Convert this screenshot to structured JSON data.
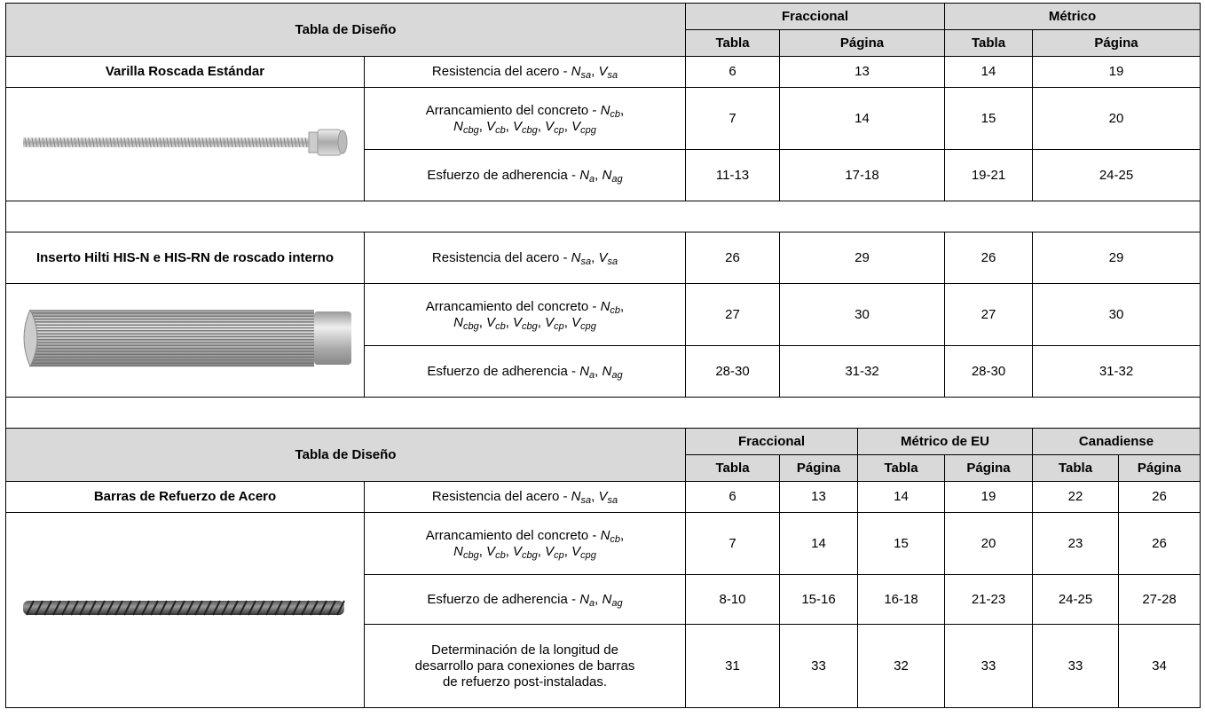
{
  "sections": [
    {
      "header": {
        "title": "Tabla de Diseño",
        "groups": [
          {
            "name": "Fraccional",
            "cols": [
              "Tabla",
              "Página"
            ]
          },
          {
            "name": "Métrico",
            "cols": [
              "Tabla",
              "Página"
            ]
          }
        ]
      },
      "items": [
        {
          "name": "Varilla Roscada Estándar",
          "rows": [
            {
              "label": [
                [
                  "Resistencia del acero - ",
                  {
                    "v": "N",
                    "sub": "sa"
                  },
                  ", ",
                  {
                    "v": "V",
                    "sub": "sa"
                  }
                ]
              ],
              "values": [
                "6",
                "13",
                "14",
                "19"
              ]
            },
            {
              "label": [
                [
                  "Arrancamiento del concreto - ",
                  {
                    "v": "N",
                    "sub": "cb"
                  },
                  ","
                ],
                [
                  {
                    "v": "N",
                    "sub": "cbg"
                  },
                  ", ",
                  {
                    "v": "V",
                    "sub": "cb"
                  },
                  ", ",
                  {
                    "v": "V",
                    "sub": "cbg"
                  },
                  ", ",
                  {
                    "v": "V",
                    "sub": "cp"
                  },
                  ", ",
                  {
                    "v": "V",
                    "sub": "cpg"
                  }
                ]
              ],
              "values": [
                "7",
                "14",
                "15",
                "20"
              ]
            },
            {
              "label": [
                [
                  "Esfuerzo de adherencia - ",
                  {
                    "v": "N",
                    "sub": "a"
                  },
                  ", ",
                  {
                    "v": "N",
                    "sub": "ag"
                  }
                ]
              ],
              "values": [
                "11-13",
                "17-18",
                "19-21",
                "24-25"
              ]
            }
          ]
        },
        {
          "name": "Inserto Hilti HIS-N e HIS-RN de roscado interno",
          "rows": [
            {
              "label": [
                [
                  "Resistencia del acero - ",
                  {
                    "v": "N",
                    "sub": "sa"
                  },
                  ", ",
                  {
                    "v": "V",
                    "sub": "sa"
                  }
                ]
              ],
              "values": [
                "26",
                "29",
                "26",
                "29"
              ]
            },
            {
              "label": [
                [
                  "Arrancamiento del concreto - ",
                  {
                    "v": "N",
                    "sub": "cb"
                  },
                  ","
                ],
                [
                  {
                    "v": "N",
                    "sub": "cbg"
                  },
                  ", ",
                  {
                    "v": "V",
                    "sub": "cb"
                  },
                  ", ",
                  {
                    "v": "V",
                    "sub": "cbg"
                  },
                  ", ",
                  {
                    "v": "V",
                    "sub": "cp"
                  },
                  ", ",
                  {
                    "v": "V",
                    "sub": "cpg"
                  }
                ]
              ],
              "values": [
                "27",
                "30",
                "27",
                "30"
              ]
            },
            {
              "label": [
                [
                  "Esfuerzo de adherencia - ",
                  {
                    "v": "N",
                    "sub": "a"
                  },
                  ", ",
                  {
                    "v": "N",
                    "sub": "ag"
                  }
                ]
              ],
              "values": [
                "28-30",
                "31-32",
                "28-30",
                "31-32"
              ]
            }
          ]
        }
      ]
    },
    {
      "header": {
        "title": "Tabla de Diseño",
        "groups": [
          {
            "name": "Fraccional",
            "cols": [
              "Tabla",
              "Página"
            ]
          },
          {
            "name": "Métrico de EU",
            "cols": [
              "Tabla",
              "Página"
            ]
          },
          {
            "name": "Canadiense",
            "cols": [
              "Tabla",
              "Página"
            ]
          }
        ]
      },
      "items": [
        {
          "name": "Barras de Refuerzo de Acero",
          "rows": [
            {
              "label": [
                [
                  "Resistencia del acero - ",
                  {
                    "v": "N",
                    "sub": "sa"
                  },
                  ", ",
                  {
                    "v": "V",
                    "sub": "sa"
                  }
                ]
              ],
              "values": [
                "6",
                "13",
                "14",
                "19",
                "22",
                "26"
              ]
            },
            {
              "label": [
                [
                  "Arrancamiento del concreto - ",
                  {
                    "v": "N",
                    "sub": "cb"
                  },
                  ","
                ],
                [
                  {
                    "v": "N",
                    "sub": "cbg"
                  },
                  ", ",
                  {
                    "v": "V",
                    "sub": "cb"
                  },
                  ", ",
                  {
                    "v": "V",
                    "sub": "cbg"
                  },
                  ", ",
                  {
                    "v": "V",
                    "sub": "cp"
                  },
                  ", ",
                  {
                    "v": "V",
                    "sub": "cpg"
                  }
                ]
              ],
              "values": [
                "7",
                "14",
                "15",
                "20",
                "23",
                "26"
              ]
            },
            {
              "label": [
                [
                  "Esfuerzo de adherencia - ",
                  {
                    "v": "N",
                    "sub": "a"
                  },
                  ", ",
                  {
                    "v": "N",
                    "sub": "ag"
                  }
                ]
              ],
              "values": [
                "8-10",
                "15-16",
                "16-18",
                "21-23",
                "24-25",
                "27-28"
              ]
            },
            {
              "label": [
                [
                  "Determinación de la longitud de"
                ],
                [
                  "desarrollo para conexiones de barras"
                ],
                [
                  "de refuerzo post-instaladas."
                ]
              ],
              "values": [
                "31",
                "33",
                "32",
                "33",
                "33",
                "34"
              ]
            }
          ]
        }
      ]
    }
  ]
}
